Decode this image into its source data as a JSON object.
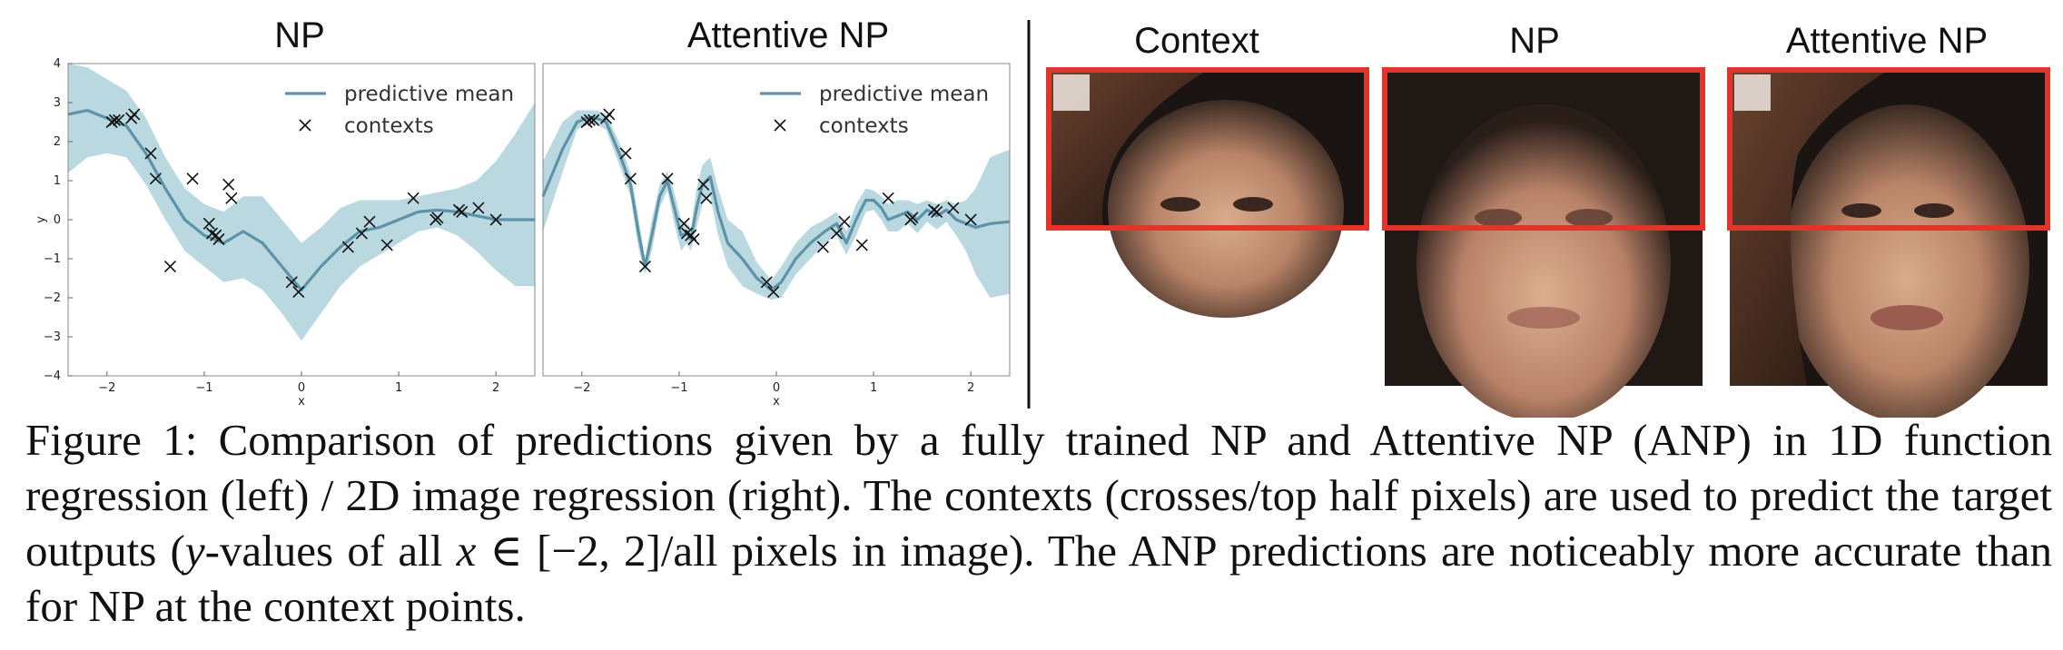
{
  "figure": {
    "left_titles": {
      "np": "NP",
      "anp": "Attentive NP"
    },
    "right_titles": {
      "context": "Context",
      "np": "NP",
      "anp": "Attentive NP"
    },
    "legend": {
      "mean": "predictive mean",
      "contexts": "contexts"
    },
    "colors": {
      "band": "#b9d8e0",
      "mean": "#5d93a8",
      "highlight": "#e0342c"
    }
  },
  "chart_data": [
    {
      "type": "line",
      "title": "NP",
      "xlabel": "x",
      "ylabel": "y",
      "xlim": [
        -2.4,
        2.4
      ],
      "ylim": [
        -4,
        4
      ],
      "x_ticks": [
        -2,
        -1,
        0,
        1,
        2
      ],
      "y_ticks": [
        -4,
        -3,
        -2,
        -1,
        0,
        1,
        2,
        3,
        4
      ],
      "grid": false,
      "legend_position": "top-right",
      "series": [
        {
          "name": "predictive mean",
          "x": [
            -2.4,
            -2.2,
            -2.0,
            -1.8,
            -1.6,
            -1.4,
            -1.2,
            -1.0,
            -0.8,
            -0.6,
            -0.4,
            -0.2,
            0.0,
            0.2,
            0.4,
            0.6,
            0.8,
            1.0,
            1.2,
            1.4,
            1.6,
            1.8,
            2.0,
            2.2,
            2.4
          ],
          "mean": [
            2.7,
            2.8,
            2.6,
            2.4,
            1.7,
            0.8,
            0.0,
            -0.4,
            -0.6,
            -0.3,
            -0.6,
            -1.2,
            -1.8,
            -1.2,
            -0.7,
            -0.3,
            -0.2,
            0.0,
            0.2,
            0.25,
            0.2,
            0.1,
            0.0,
            0.0,
            0.0
          ],
          "upper": [
            4.0,
            3.9,
            3.6,
            3.3,
            2.6,
            1.6,
            0.8,
            0.4,
            0.2,
            0.6,
            0.6,
            0.0,
            -0.6,
            -0.2,
            0.3,
            0.5,
            0.5,
            0.5,
            0.6,
            0.7,
            0.8,
            1.0,
            1.5,
            2.2,
            3.0
          ],
          "lower": [
            1.2,
            1.6,
            1.7,
            1.6,
            0.9,
            0.0,
            -0.8,
            -1.2,
            -1.6,
            -1.5,
            -1.8,
            -2.4,
            -3.1,
            -2.4,
            -1.7,
            -1.2,
            -0.9,
            -0.6,
            -0.3,
            -0.2,
            -0.4,
            -0.8,
            -1.3,
            -1.7,
            -1.7
          ]
        },
        {
          "name": "contexts",
          "x": [
            -1.95,
            -1.92,
            -1.88,
            -1.75,
            -1.72,
            -1.55,
            -1.5,
            -1.35,
            -1.12,
            -0.95,
            -0.92,
            -0.88,
            -0.85,
            -0.75,
            -0.72,
            -0.1,
            -0.03,
            0.48,
            0.62,
            0.7,
            0.88,
            1.15,
            1.38,
            1.4,
            1.62,
            1.65,
            1.82,
            2.0
          ],
          "y": [
            2.5,
            2.55,
            2.55,
            2.6,
            2.7,
            1.7,
            1.05,
            -1.2,
            1.05,
            -0.1,
            -0.35,
            -0.4,
            -0.5,
            0.9,
            0.55,
            -1.6,
            -1.85,
            -0.7,
            -0.35,
            -0.05,
            -0.65,
            0.55,
            0.0,
            0.05,
            0.25,
            0.2,
            0.3,
            0.0
          ]
        }
      ]
    },
    {
      "type": "line",
      "title": "Attentive NP",
      "xlabel": "x",
      "ylabel": "y",
      "xlim": [
        -2.4,
        2.4
      ],
      "ylim": [
        -4,
        4
      ],
      "x_ticks": [
        -2,
        -1,
        0,
        1,
        2
      ],
      "grid": false,
      "legend_position": "top-right",
      "series": [
        {
          "name": "predictive mean",
          "x": [
            -2.4,
            -2.2,
            -2.05,
            -1.95,
            -1.85,
            -1.75,
            -1.6,
            -1.5,
            -1.42,
            -1.35,
            -1.28,
            -1.2,
            -1.12,
            -1.05,
            -0.98,
            -0.92,
            -0.88,
            -0.82,
            -0.76,
            -0.68,
            -0.6,
            -0.5,
            -0.35,
            -0.2,
            -0.05,
            0.05,
            0.2,
            0.35,
            0.5,
            0.62,
            0.72,
            0.82,
            0.92,
            1.0,
            1.08,
            1.15,
            1.25,
            1.35,
            1.45,
            1.55,
            1.65,
            1.75,
            1.85,
            1.95,
            2.05,
            2.2,
            2.4
          ],
          "mean": [
            0.6,
            1.8,
            2.5,
            2.6,
            2.6,
            2.5,
            1.6,
            0.9,
            -0.3,
            -1.2,
            -0.4,
            0.6,
            1.0,
            0.3,
            -0.4,
            -0.35,
            -0.5,
            0.3,
            0.9,
            1.1,
            0.2,
            -0.6,
            -1.0,
            -1.5,
            -1.8,
            -1.6,
            -1.0,
            -0.6,
            -0.3,
            -0.1,
            -0.6,
            0.0,
            0.5,
            0.5,
            0.3,
            0.0,
            0.1,
            0.2,
            0.0,
            0.25,
            0.1,
            0.25,
            0.0,
            -0.1,
            -0.2,
            -0.1,
            -0.05
          ],
          "upper": [
            1.5,
            2.5,
            2.8,
            2.8,
            2.8,
            2.7,
            1.9,
            1.2,
            0.1,
            -1.0,
            0.0,
            0.9,
            1.25,
            0.7,
            0.0,
            -0.1,
            -0.2,
            0.8,
            1.4,
            1.6,
            0.8,
            0.0,
            -0.3,
            -1.1,
            -1.55,
            -1.2,
            -0.6,
            -0.2,
            0.0,
            0.2,
            -0.3,
            0.4,
            0.8,
            0.75,
            0.6,
            0.4,
            0.5,
            0.5,
            0.4,
            0.5,
            0.4,
            0.5,
            0.4,
            0.5,
            0.8,
            1.6,
            1.8
          ],
          "lower": [
            -0.3,
            1.2,
            2.3,
            2.45,
            2.45,
            2.3,
            1.3,
            0.6,
            -0.7,
            -1.4,
            -0.8,
            0.3,
            0.75,
            -0.1,
            -0.8,
            -0.6,
            -0.8,
            -0.2,
            0.4,
            0.6,
            -0.4,
            -1.2,
            -1.7,
            -1.9,
            -2.05,
            -2.0,
            -1.4,
            -1.0,
            -0.6,
            -0.4,
            -0.9,
            -0.4,
            0.2,
            0.25,
            0.0,
            -0.3,
            -0.3,
            -0.1,
            -0.35,
            -0.05,
            -0.25,
            -0.05,
            -0.4,
            -0.8,
            -1.4,
            -2.0,
            -1.9
          ]
        },
        {
          "name": "contexts",
          "x": [
            -1.95,
            -1.92,
            -1.88,
            -1.75,
            -1.72,
            -1.55,
            -1.5,
            -1.35,
            -1.12,
            -0.95,
            -0.92,
            -0.88,
            -0.85,
            -0.75,
            -0.72,
            -0.1,
            -0.03,
            0.48,
            0.62,
            0.7,
            0.88,
            1.15,
            1.38,
            1.4,
            1.62,
            1.65,
            1.82,
            2.0
          ],
          "y": [
            2.5,
            2.55,
            2.55,
            2.6,
            2.7,
            1.7,
            1.05,
            -1.2,
            1.05,
            -0.1,
            -0.35,
            -0.4,
            -0.5,
            0.9,
            0.55,
            -1.6,
            -1.85,
            -0.7,
            -0.35,
            -0.05,
            -0.65,
            0.55,
            0.0,
            0.05,
            0.25,
            0.2,
            0.3,
            0.0
          ]
        }
      ]
    }
  ],
  "caption": {
    "label": "Figure 1:",
    "text_a": " Comparison of predictions given by a fully trained NP and Attentive NP (ANP) in 1D function regression (left) / 2D image regression (right). The contexts (crosses/top half pixels) are used to predict the target outputs (",
    "math_y": "y",
    "text_b": "-values of all ",
    "math_x": "x",
    "math_in": " ∈ [−2, 2]",
    "text_c": "/all pixels in image). The ANP predictions are noticeably more accurate than for NP at the context points."
  }
}
